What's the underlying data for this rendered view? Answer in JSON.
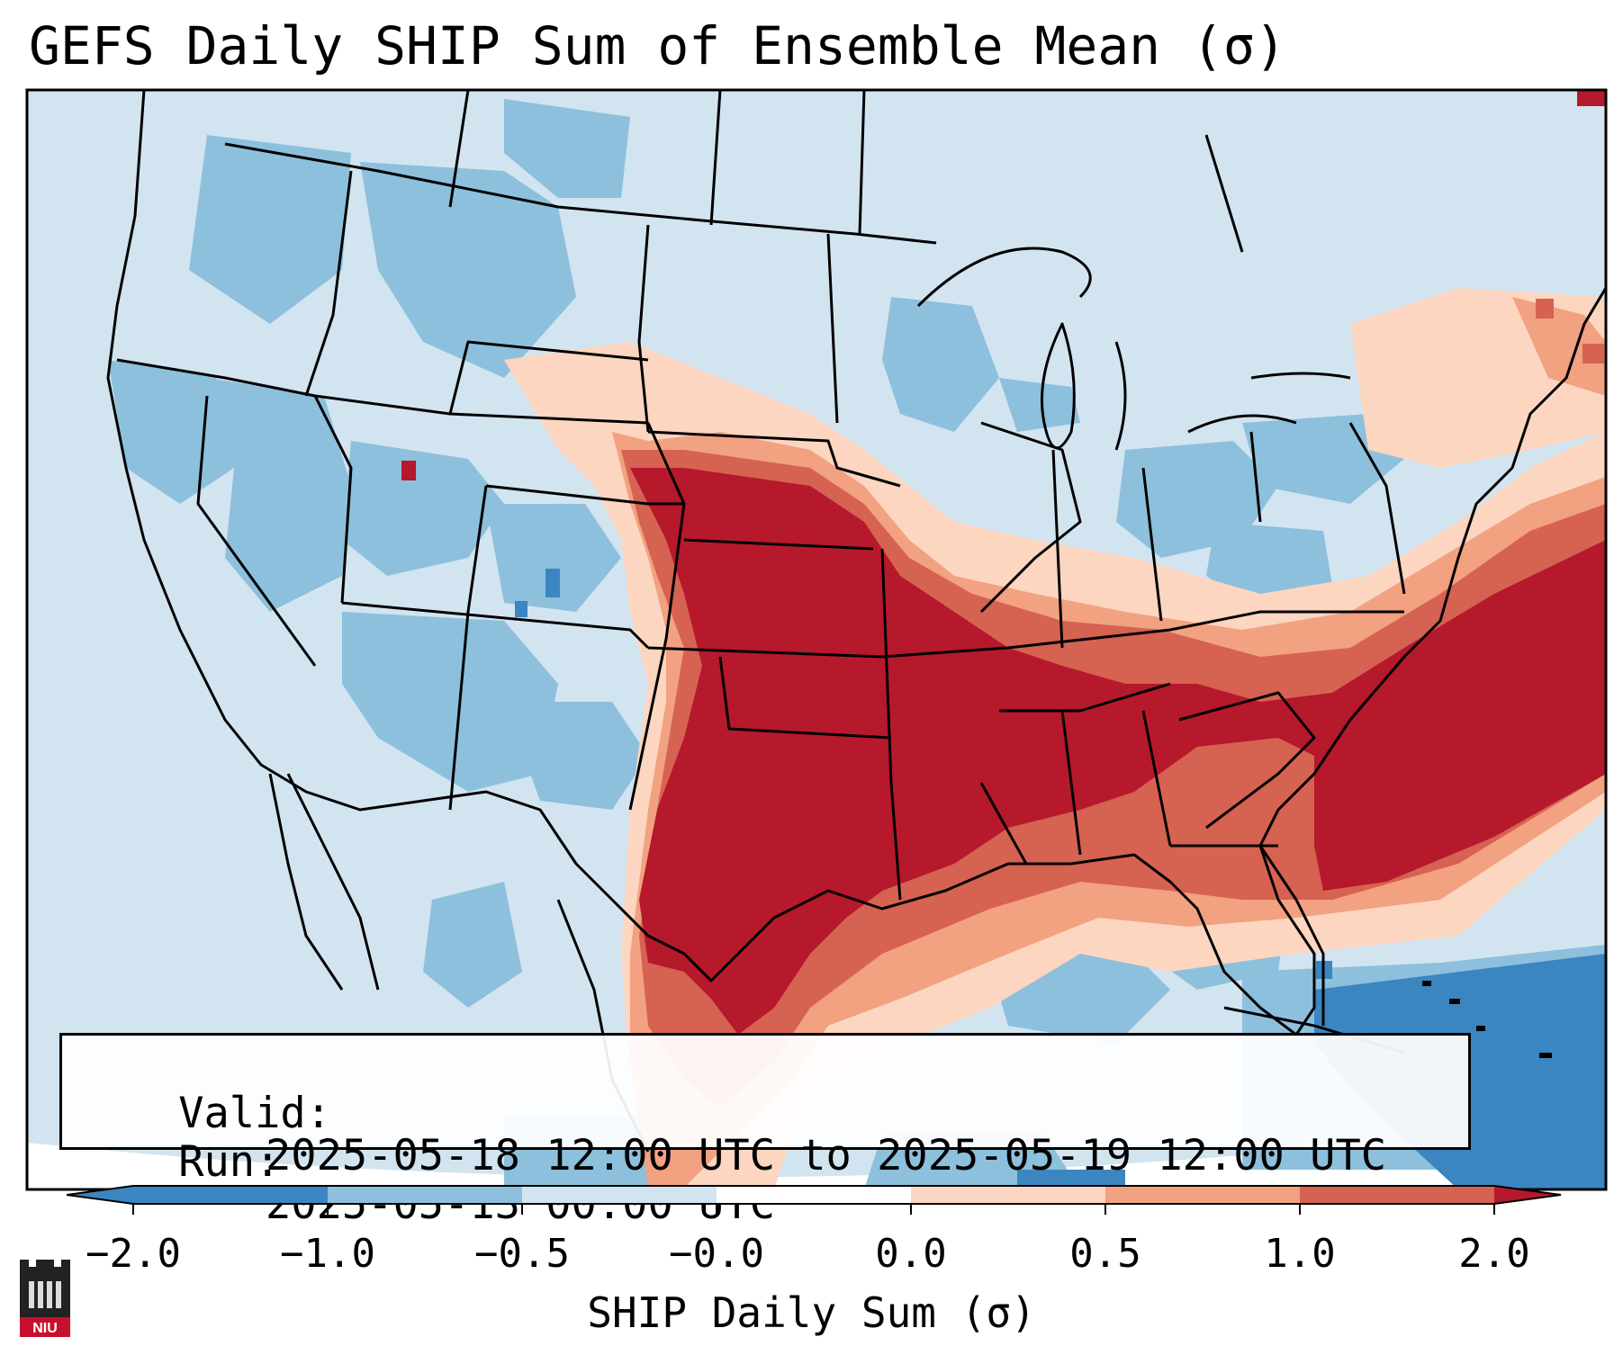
{
  "title": "GEFS Daily SHIP Sum of Ensemble Mean (σ)",
  "info_box": {
    "valid_label": "Valid:",
    "valid_value": "2025-05-18 12:00 UTC to 2025-05-19 12:00 UTC",
    "run_label": "Run:",
    "run_value": "2025-05-13 00:00 UTC"
  },
  "colorbar": {
    "label": "SHIP Daily Sum (σ)",
    "ticks": [
      "−2.0",
      "−1.0",
      "−0.5",
      "−0.0",
      "0.0",
      "0.5",
      "1.0",
      "2.0"
    ],
    "colors": [
      "#3b86c1",
      "#8dc0dc",
      "#d2e4f0",
      "#f8f8f8",
      "#fcd6c0",
      "#f2a181",
      "#d66252",
      "#b5192b"
    ],
    "extend": "both"
  },
  "map": {
    "region": "Contiguous United States",
    "colors": {
      "background_field": "#d2e4f0",
      "neg_strong": "#3b86c1",
      "neg_moderate": "#8dc0dc",
      "pos_weak": "#fcd6c0",
      "pos_moderate": "#f2a181",
      "pos_strong": "#d66252",
      "pos_max": "#b5192b",
      "outline": "#000000"
    }
  },
  "logo": {
    "text": "NIU"
  }
}
